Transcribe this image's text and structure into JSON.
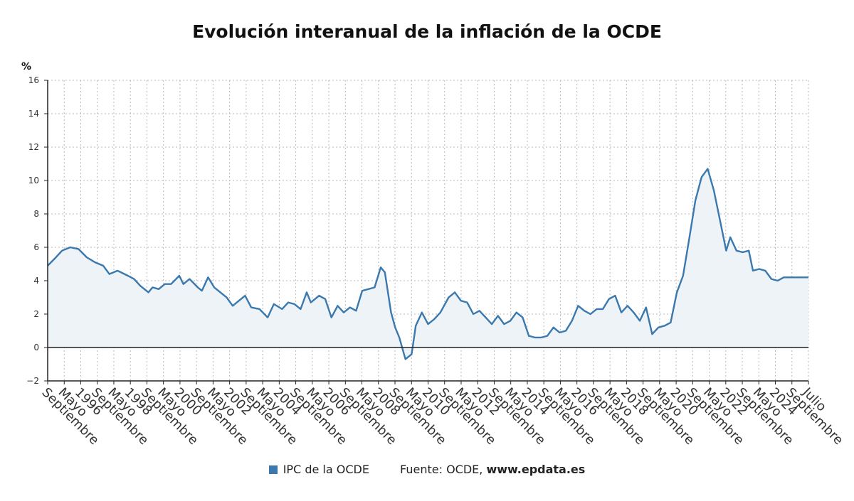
{
  "title": "Evolución interanual de la inflación de la OCDE",
  "unit": "%",
  "colors": {
    "line": "#3a78ad",
    "fill": "#eef3f8",
    "grid": "#b9b9b9",
    "axis": "#222222",
    "zero": "#222222"
  },
  "legend": {
    "series_label": "IPC de la OCDE",
    "source_prefix": "Fuente: OCDE,",
    "source_site": "www.epdata.es"
  },
  "chart_data": {
    "type": "area",
    "ylim": [
      -2,
      16
    ],
    "yticks": [
      -2,
      0,
      2,
      4,
      6,
      8,
      10,
      12,
      14,
      16
    ],
    "grid": true,
    "legend_position": "bottom",
    "x_tick_labels": [
      "Septiembre",
      "Mayo",
      "1996",
      "Septiembre",
      "Mayo",
      "1998",
      "Septiembre",
      "Mayo",
      "2000",
      "Septiembre",
      "Mayo",
      "2002",
      "Septiembre",
      "Mayo",
      "2004",
      "Septiembre",
      "Mayo",
      "2006",
      "Septiembre",
      "Mayo",
      "2008",
      "Septiembre",
      "Mayo",
      "2010",
      "Septiembre",
      "Mayo",
      "2012",
      "Septiembre",
      "Mayo",
      "2014",
      "Septiembre",
      "Mayo",
      "2016",
      "Septiembre",
      "Mayo",
      "2018",
      "Septiembre",
      "Mayo",
      "2020",
      "Septiembre",
      "Mayo",
      "2022",
      "Septiembre",
      "Mayo",
      "2024",
      "Septiembre",
      "Julio"
    ],
    "series": [
      {
        "name": "IPC de la OCDE",
        "start": "1994-09",
        "end": "2025-07",
        "anchors": [
          [
            "1994-09",
            4.9
          ],
          [
            "1995-01",
            5.4
          ],
          [
            "1995-04",
            5.8
          ],
          [
            "1995-08",
            6.0
          ],
          [
            "1995-12",
            5.9
          ],
          [
            "1996-04",
            5.4
          ],
          [
            "1996-08",
            5.1
          ],
          [
            "1996-12",
            4.9
          ],
          [
            "1997-03",
            4.4
          ],
          [
            "1997-07",
            4.6
          ],
          [
            "1997-12",
            4.3
          ],
          [
            "1998-03",
            4.1
          ],
          [
            "1998-06",
            3.7
          ],
          [
            "1998-10",
            3.3
          ],
          [
            "1998-12",
            3.6
          ],
          [
            "1999-03",
            3.5
          ],
          [
            "1999-06",
            3.8
          ],
          [
            "1999-09",
            3.8
          ],
          [
            "2000-01",
            4.3
          ],
          [
            "2000-03",
            3.8
          ],
          [
            "2000-06",
            4.1
          ],
          [
            "2000-10",
            3.6
          ],
          [
            "2000-12",
            3.4
          ],
          [
            "2001-03",
            4.2
          ],
          [
            "2001-06",
            3.6
          ],
          [
            "2001-09",
            3.3
          ],
          [
            "2001-12",
            3.0
          ],
          [
            "2002-03",
            2.5
          ],
          [
            "2002-06",
            2.8
          ],
          [
            "2002-09",
            3.1
          ],
          [
            "2002-12",
            2.4
          ],
          [
            "2003-04",
            2.3
          ],
          [
            "2003-08",
            1.8
          ],
          [
            "2003-11",
            2.6
          ],
          [
            "2004-03",
            2.3
          ],
          [
            "2004-06",
            2.7
          ],
          [
            "2004-09",
            2.6
          ],
          [
            "2004-12",
            2.3
          ],
          [
            "2005-03",
            3.3
          ],
          [
            "2005-05",
            2.7
          ],
          [
            "2005-09",
            3.1
          ],
          [
            "2005-12",
            2.9
          ],
          [
            "2006-03",
            1.8
          ],
          [
            "2006-06",
            2.5
          ],
          [
            "2006-09",
            2.1
          ],
          [
            "2006-12",
            2.4
          ],
          [
            "2007-03",
            2.2
          ],
          [
            "2007-06",
            3.4
          ],
          [
            "2007-09",
            3.5
          ],
          [
            "2007-12",
            3.6
          ],
          [
            "2008-03",
            4.8
          ],
          [
            "2008-05",
            4.5
          ],
          [
            "2008-08",
            2.1
          ],
          [
            "2008-10",
            1.2
          ],
          [
            "2008-12",
            0.6
          ],
          [
            "2009-03",
            -0.7
          ],
          [
            "2009-06",
            -0.4
          ],
          [
            "2009-08",
            1.3
          ],
          [
            "2009-11",
            2.1
          ],
          [
            "2010-02",
            1.4
          ],
          [
            "2010-05",
            1.7
          ],
          [
            "2010-08",
            2.1
          ],
          [
            "2010-12",
            3.0
          ],
          [
            "2011-03",
            3.3
          ],
          [
            "2011-06",
            2.8
          ],
          [
            "2011-09",
            2.7
          ],
          [
            "2011-12",
            2.0
          ],
          [
            "2012-03",
            2.2
          ],
          [
            "2012-06",
            1.8
          ],
          [
            "2012-09",
            1.4
          ],
          [
            "2012-12",
            1.9
          ],
          [
            "2013-03",
            1.4
          ],
          [
            "2013-06",
            1.6
          ],
          [
            "2013-09",
            2.1
          ],
          [
            "2013-12",
            1.8
          ],
          [
            "2014-03",
            0.7
          ],
          [
            "2014-06",
            0.6
          ],
          [
            "2014-09",
            0.6
          ],
          [
            "2014-12",
            0.7
          ],
          [
            "2015-03",
            1.2
          ],
          [
            "2015-06",
            0.9
          ],
          [
            "2015-09",
            1.0
          ],
          [
            "2015-12",
            1.6
          ],
          [
            "2016-03",
            2.5
          ],
          [
            "2016-06",
            2.2
          ],
          [
            "2016-09",
            2.0
          ],
          [
            "2016-12",
            2.3
          ],
          [
            "2017-03",
            2.3
          ],
          [
            "2017-06",
            2.9
          ],
          [
            "2017-09",
            3.1
          ],
          [
            "2017-12",
            2.1
          ],
          [
            "2018-03",
            2.5
          ],
          [
            "2018-06",
            2.1
          ],
          [
            "2018-09",
            1.6
          ],
          [
            "2018-12",
            2.4
          ],
          [
            "2019-03",
            0.8
          ],
          [
            "2019-06",
            1.2
          ],
          [
            "2019-09",
            1.3
          ],
          [
            "2019-12",
            1.5
          ],
          [
            "2020-03",
            3.3
          ],
          [
            "2020-06",
            4.3
          ],
          [
            "2020-09",
            6.5
          ],
          [
            "2020-12",
            8.8
          ],
          [
            "2021-03",
            10.2
          ],
          [
            "2021-06",
            10.7
          ],
          [
            "2021-09",
            9.4
          ],
          [
            "2021-12",
            7.6
          ],
          [
            "2022-03",
            5.8
          ],
          [
            "2022-05",
            6.6
          ],
          [
            "2022-08",
            5.8
          ],
          [
            "2022-11",
            5.7
          ],
          [
            "2023-02",
            5.8
          ],
          [
            "2023-04",
            4.6
          ],
          [
            "2023-07",
            4.7
          ],
          [
            "2023-10",
            4.6
          ],
          [
            "2024-01",
            4.1
          ],
          [
            "2024-04",
            4.0
          ],
          [
            "2024-07",
            4.2
          ],
          [
            "2025-07",
            4.2
          ]
        ]
      }
    ]
  }
}
